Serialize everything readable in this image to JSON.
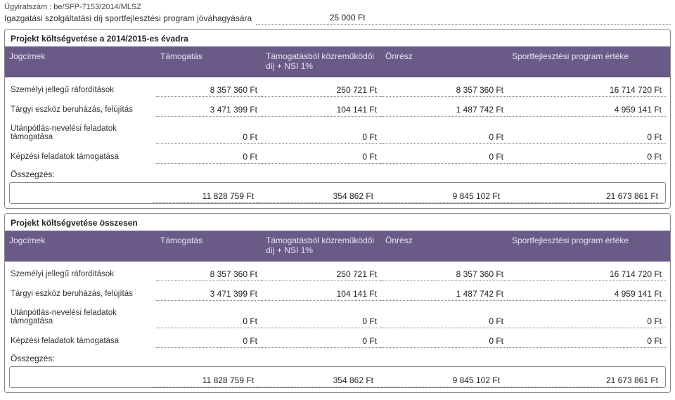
{
  "doc_id": "Ügyiratszám : be/SFP-7153/2014/MLSZ",
  "fee": {
    "label": "Igazgatási szolgáltatási díj sportfejlesztési program jóváhagyására",
    "value": "25 000 Ft"
  },
  "colors": {
    "header_bg": "#6a5a88",
    "header_text": "#e9e3f2",
    "border": "#888",
    "dotted": "#7a7a99"
  },
  "tables": [
    {
      "title": "Projekt költségvetése a 2014/2015-es évadra",
      "columns": [
        "Jogcímek",
        "Támogatás",
        "Támogatásból közreműködői díj + NSI 1%",
        "Önrész",
        "Sportfejlesztési program értéke"
      ],
      "rows": [
        {
          "label": "Személyi jellegű ráfordítások",
          "a": "8 357 360 Ft",
          "b": "250 721 Ft",
          "c": "8 357 360 Ft",
          "d": "16 714 720 Ft"
        },
        {
          "label": "Tárgyi eszköz beruházás, felújítás",
          "a": "3 471 399 Ft",
          "b": "104 141 Ft",
          "c": "1 487 742 Ft",
          "d": "4 959 141 Ft"
        },
        {
          "label": "Utánpótlás-nevelési feladatok támogatása",
          "a": "0 Ft",
          "b": "0 Ft",
          "c": "0 Ft",
          "d": "0 Ft"
        },
        {
          "label": "Képzési feladatok támogatása",
          "a": "0 Ft",
          "b": "0 Ft",
          "c": "0 Ft",
          "d": "0 Ft"
        }
      ],
      "sum_label": "Összegzés:",
      "sum": {
        "a": "11 828 759 Ft",
        "b": "354 862 Ft",
        "c": "9 845 102 Ft",
        "d": "21 673 861 Ft"
      }
    },
    {
      "title": "Projekt költségvetése összesen",
      "columns": [
        "Jogcímek",
        "Támogatás",
        "Támogatásból közreműködői díj + NSI 1%",
        "Önrész",
        "Sportfejlesztési program értéke"
      ],
      "rows": [
        {
          "label": "Személyi jellegű ráfordítások",
          "a": "8 357 360 Ft",
          "b": "250 721 Ft",
          "c": "8 357 360 Ft",
          "d": "16 714 720 Ft"
        },
        {
          "label": "Tárgyi eszköz beruházás, felújítás",
          "a": "3 471 399 Ft",
          "b": "104 141 Ft",
          "c": "1 487 742 Ft",
          "d": "4 959 141 Ft"
        },
        {
          "label": "Utánpótlás-nevelési feladatok támogatása",
          "a": "0 Ft",
          "b": "0 Ft",
          "c": "0 Ft",
          "d": "0 Ft"
        },
        {
          "label": "Képzési feladatok támogatása",
          "a": "0 Ft",
          "b": "0 Ft",
          "c": "0 Ft",
          "d": "0 Ft"
        }
      ],
      "sum_label": "Összegzés:",
      "sum": {
        "a": "11 828 759 Ft",
        "b": "354 862 Ft",
        "c": "9 845 102 Ft",
        "d": "21 673 861 Ft"
      }
    }
  ]
}
